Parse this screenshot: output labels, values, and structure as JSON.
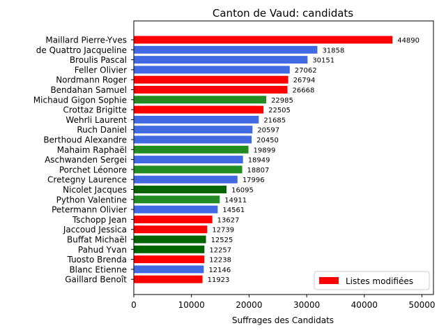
{
  "chart_data": {
    "type": "bar",
    "orientation": "horizontal",
    "title": "Canton de Vaud: candidats",
    "xlabel": "Suffrages des Candidats",
    "ylabel": "",
    "xlim": [
      0,
      52000
    ],
    "xticks": [
      0,
      10000,
      20000,
      30000,
      40000,
      50000
    ],
    "xtick_labels": [
      "0",
      "10000",
      "20000",
      "30000",
      "40000",
      "50000"
    ],
    "grid": false,
    "legend_position": "lower-right",
    "legend": [
      {
        "label": "Listes modifiées",
        "color": "#ff0000"
      }
    ],
    "categories": [
      "Maillard Pierre-Yves",
      "de Quattro Jacqueline",
      "Broulis Pascal",
      "Feller Olivier",
      "Nordmann Roger",
      "Bendahan Samuel",
      "Michaud Gigon Sophie",
      "Crottaz Brigitte",
      "Wehrli Laurent",
      "Ruch Daniel",
      "Berthoud Alexandre",
      "Mahaim Raphaël",
      "Aschwanden Sergei",
      "Porchet Léonore",
      "Cretegny Laurence",
      "Nicolet Jacques",
      "Python Valentine",
      "Petermann Olivier",
      "Tschopp Jean",
      "Jaccoud Jessica",
      "Buffat Michaël",
      "Pahud Yvan",
      "Tuosto Brenda",
      "Blanc Etienne",
      "Gaillard Benoît"
    ],
    "values": [
      44890,
      31858,
      30151,
      27062,
      26794,
      26668,
      22985,
      22505,
      21685,
      20597,
      20450,
      19899,
      18949,
      18807,
      17996,
      16095,
      14911,
      14561,
      13627,
      12739,
      12525,
      12257,
      12238,
      12146,
      11923
    ],
    "value_labels": [
      "44890",
      "31858",
      "30151",
      "27062",
      "26794",
      "26668",
      "22985",
      "22505",
      "21685",
      "20597",
      "20450",
      "19899",
      "18949",
      "18807",
      "17996",
      "16095",
      "14911",
      "14561",
      "13627",
      "12739",
      "12525",
      "12257",
      "12238",
      "12146",
      "11923"
    ],
    "colors": [
      "#ff0000",
      "#4169e1",
      "#4169e1",
      "#4169e1",
      "#ff0000",
      "#ff0000",
      "#228b22",
      "#ff0000",
      "#4169e1",
      "#4169e1",
      "#4169e1",
      "#228b22",
      "#4169e1",
      "#228b22",
      "#4169e1",
      "#006400",
      "#228b22",
      "#4169e1",
      "#ff0000",
      "#ff0000",
      "#006400",
      "#006400",
      "#ff0000",
      "#4169e1",
      "#ff0000"
    ]
  }
}
